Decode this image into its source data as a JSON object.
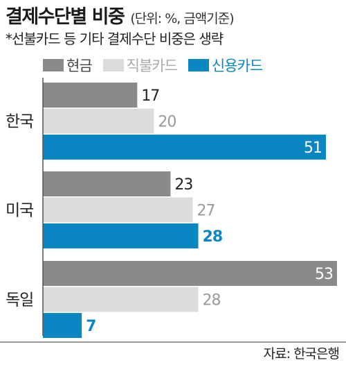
{
  "header": {
    "title": "결제수단별 비중",
    "unit": "(단위: %, 금액기준)",
    "note": "*선불카드 등 기타 결제수단 비중은 생략"
  },
  "source": "자료: 한국은행",
  "colors": {
    "cash": "#8a8a8a",
    "debit": "#dcdcdc",
    "credit": "#0a86c2",
    "axis": "#555555"
  },
  "chart_data": {
    "type": "bar",
    "orientation": "horizontal",
    "categories": [
      "한국",
      "미국",
      "독일"
    ],
    "series": [
      {
        "name": "현금",
        "values": [
          17,
          23,
          53
        ]
      },
      {
        "name": "직불카드",
        "values": [
          20,
          27,
          28
        ]
      },
      {
        "name": "신용카드",
        "values": [
          51,
          28,
          7
        ]
      }
    ],
    "title": "결제수단별 비중",
    "unit_label": "(단위: %, 금액기준)",
    "xlim": [
      0,
      53
    ],
    "legend_position": "top-left",
    "grid": false
  }
}
